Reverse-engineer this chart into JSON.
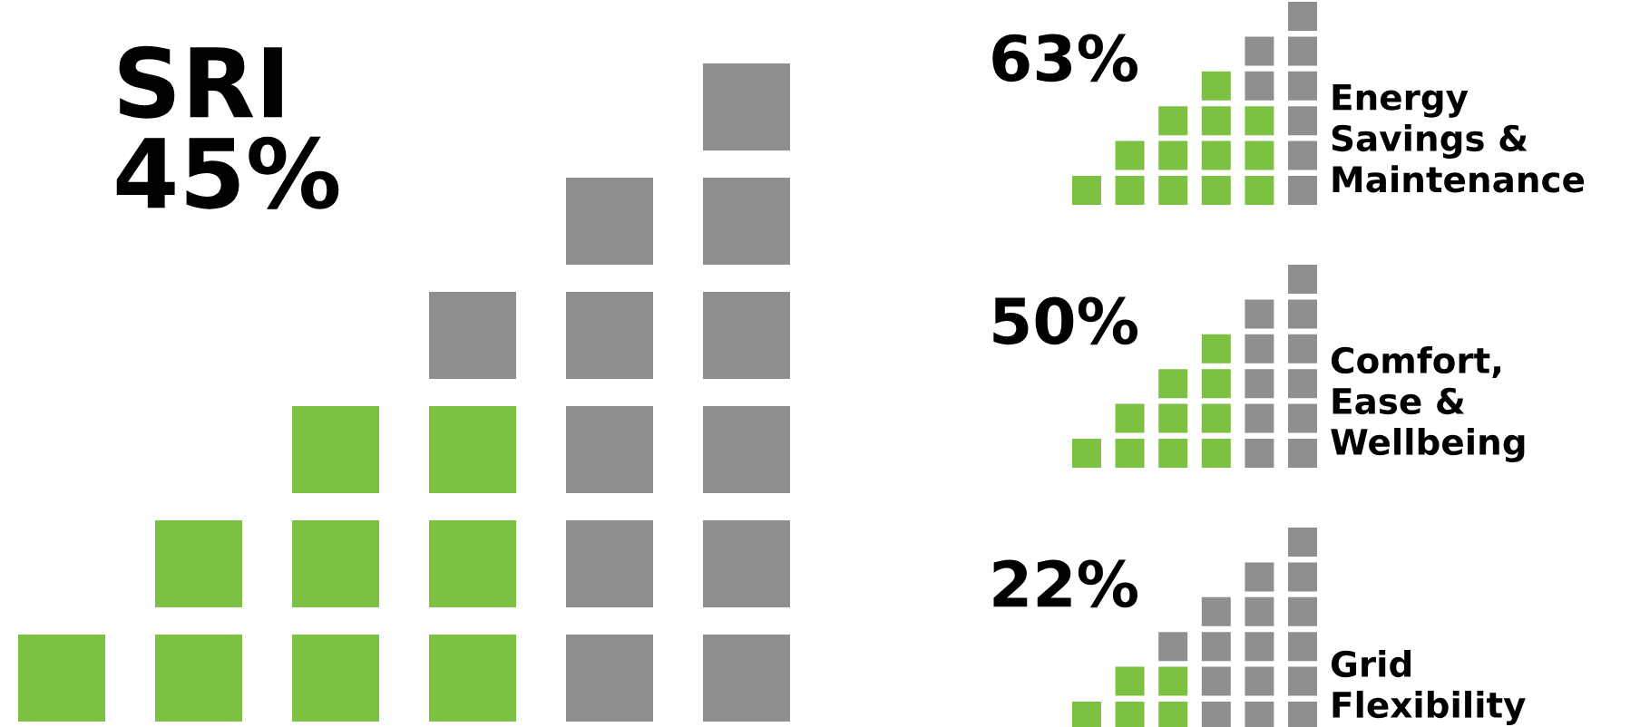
{
  "chart_data": [
    {
      "type": "other",
      "title": "SRI",
      "values": [
        45
      ],
      "value_labels": [
        "45%"
      ],
      "color": "#7dc142"
    },
    {
      "type": "other",
      "title": "Energy\nSavings &\nMaintenance",
      "values": [
        63
      ],
      "value_labels": [
        "63%"
      ],
      "color": "#7dc142"
    },
    {
      "type": "other",
      "title": "Comfort,\nEase &\nWellbeing",
      "values": [
        50
      ],
      "value_labels": [
        "50%"
      ],
      "color": "#7dc142"
    },
    {
      "type": "other",
      "title": "Grid\nFlexibility",
      "values": [
        22
      ],
      "value_labels": [
        "22%"
      ],
      "color": "#7dc142"
    }
  ]
}
